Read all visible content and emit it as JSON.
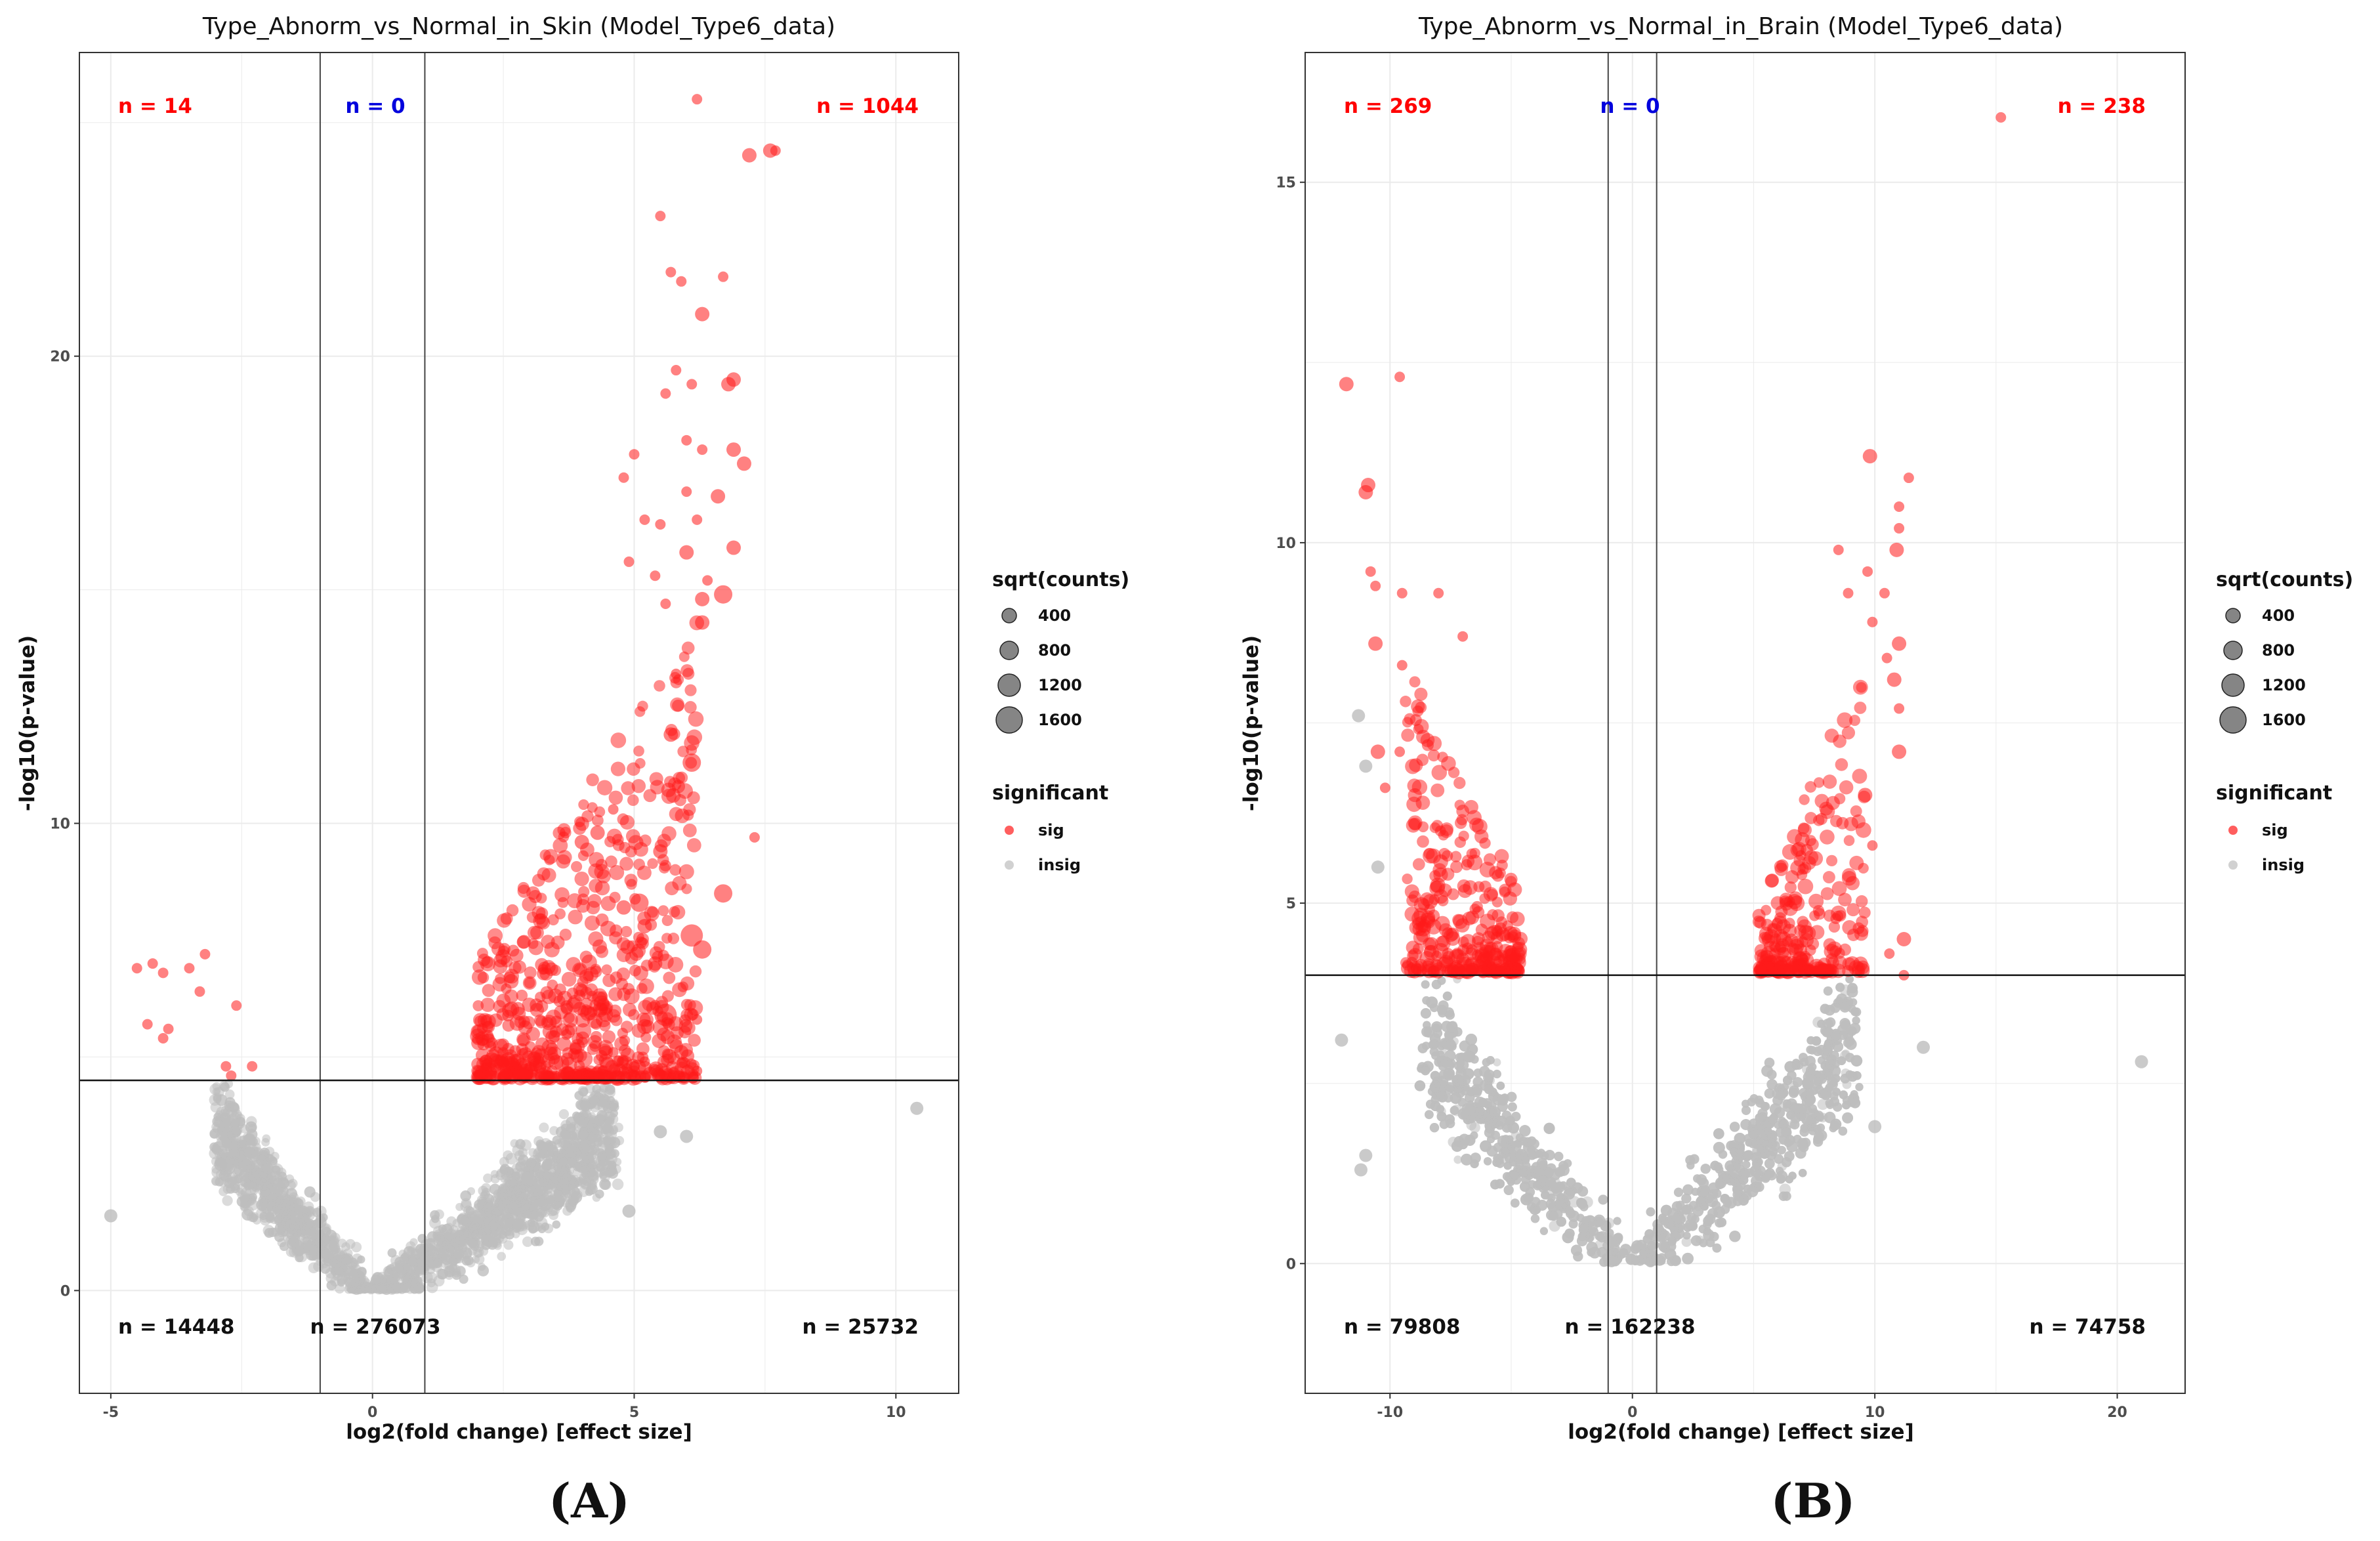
{
  "colors": {
    "sig": "#ff1a1a",
    "insig": "#bdbdbd",
    "red_label": "#ff0000",
    "blue_label": "#0000dd",
    "black_label": "#111111"
  },
  "panel_labels": [
    "(A)",
    "(B)"
  ],
  "chart_data": [
    {
      "type": "scatter",
      "title": "Type_Abnorm_vs_Normal_in_Skin (Model_Type6_data)",
      "xlabel": "log2(fold change) [effect size]",
      "ylabel": "-log10(p-value)",
      "xlim": [
        -5.6,
        11.2
      ],
      "ylim": [
        -2.2,
        26.5
      ],
      "xticks": [
        -5,
        0,
        5,
        10
      ],
      "xtick_labels": [
        "-5",
        "0",
        "5",
        "10"
      ],
      "yticks": [
        0,
        10,
        20
      ],
      "ytick_labels": [
        "0",
        "10",
        "20"
      ],
      "vlines": [
        -1,
        1
      ],
      "hline": 4.5,
      "counts": {
        "top_left": "n = 14",
        "top_center": "n = 0",
        "top_right": "n = 1044",
        "bottom_left": "n = 14448",
        "bottom_center": "n = 276073",
        "bottom_right": "n = 25732"
      },
      "legend": {
        "size_title": "sqrt(counts)",
        "size_values": [
          "400",
          "800",
          "1200",
          "1600"
        ],
        "color_title": "significant",
        "color_values": [
          "sig",
          "insig"
        ]
      },
      "sig_points": [
        [
          6.2,
          25.5,
          1
        ],
        [
          7.2,
          24.3,
          2
        ],
        [
          7.6,
          24.4,
          2
        ],
        [
          7.7,
          24.4,
          1
        ],
        [
          5.5,
          23.0,
          1
        ],
        [
          5.7,
          21.8,
          1
        ],
        [
          5.9,
          21.6,
          1
        ],
        [
          6.7,
          21.7,
          1
        ],
        [
          6.3,
          20.9,
          2
        ],
        [
          5.8,
          19.7,
          1
        ],
        [
          6.1,
          19.4,
          1
        ],
        [
          6.8,
          19.4,
          2
        ],
        [
          6.9,
          19.5,
          2
        ],
        [
          5.6,
          19.2,
          1
        ],
        [
          6.0,
          18.2,
          1
        ],
        [
          6.3,
          18.0,
          1
        ],
        [
          5.0,
          17.9,
          1
        ],
        [
          6.9,
          18.0,
          2
        ],
        [
          7.1,
          17.7,
          2
        ],
        [
          4.8,
          17.4,
          1
        ],
        [
          6.0,
          17.1,
          1
        ],
        [
          6.6,
          17.0,
          2
        ],
        [
          5.2,
          16.5,
          1
        ],
        [
          5.5,
          16.4,
          1
        ],
        [
          6.2,
          16.5,
          1
        ],
        [
          6.0,
          15.8,
          2
        ],
        [
          6.9,
          15.9,
          2
        ],
        [
          4.9,
          15.6,
          1
        ],
        [
          5.4,
          15.3,
          1
        ],
        [
          6.4,
          15.2,
          1
        ],
        [
          6.7,
          14.9,
          3
        ],
        [
          6.3,
          14.8,
          2
        ],
        [
          5.6,
          14.7,
          1
        ],
        [
          6.3,
          14.3,
          2
        ],
        [
          5.8,
          13.2,
          1
        ],
        [
          6.1,
          11.3,
          3
        ],
        [
          5.7,
          11.9,
          2
        ],
        [
          5.5,
          9.4,
          2
        ],
        [
          6.7,
          8.5,
          3
        ],
        [
          6.1,
          7.6,
          4
        ],
        [
          6.3,
          7.3,
          3
        ],
        [
          5.2,
          7.8,
          2
        ],
        [
          5.4,
          7.0,
          2
        ],
        [
          4.8,
          8.2,
          2
        ],
        [
          5.1,
          8.3,
          3
        ],
        [
          4.6,
          10.3,
          1
        ],
        [
          4.3,
          9.8,
          2
        ],
        [
          4.0,
          9.6,
          2
        ],
        [
          7.3,
          9.7,
          1
        ],
        [
          5.6,
          5.9,
          4
        ],
        [
          6.2,
          5.8,
          1
        ],
        [
          5.9,
          5.1,
          2
        ],
        [
          6.2,
          4.7,
          1
        ],
        [
          5.0,
          4.8,
          1
        ],
        [
          4.8,
          4.7,
          1
        ],
        [
          4.4,
          4.7,
          1
        ],
        [
          4.6,
          5.1,
          1
        ],
        [
          5.2,
          4.9,
          1
        ],
        [
          -4.5,
          6.9,
          1
        ],
        [
          -4.2,
          7.0,
          1
        ],
        [
          -4.0,
          6.8,
          1
        ],
        [
          -3.5,
          6.9,
          1
        ],
        [
          -3.2,
          7.2,
          1
        ],
        [
          -3.3,
          6.4,
          1
        ],
        [
          -4.3,
          5.7,
          1
        ],
        [
          -3.9,
          5.6,
          1
        ],
        [
          -4.0,
          5.4,
          1
        ],
        [
          -2.6,
          6.1,
          1
        ],
        [
          -2.8,
          4.8,
          1
        ],
        [
          -2.7,
          4.6,
          1
        ],
        [
          -2.3,
          4.8,
          1
        ]
      ],
      "sig_cloud": {
        "x_range": [
          2.0,
          6.2
        ],
        "y_floor": 4.5,
        "y_ceiling": 14.5,
        "n_points": 700
      },
      "insig_cloud": {
        "vertex": [
          0,
          0
        ],
        "x_left": -3.0,
        "x_right": 4.6,
        "y_max": 4.5,
        "n_points": 2600
      },
      "insig_outliers": [
        [
          10.4,
          3.9
        ],
        [
          -5.0,
          1.6
        ],
        [
          4.9,
          1.7
        ],
        [
          5.5,
          3.4
        ],
        [
          6.0,
          3.3
        ],
        [
          -2.9,
          2.7
        ]
      ]
    },
    {
      "type": "scatter",
      "title": "Type_Abnorm_vs_Normal_in_Brain (Model_Type6_data)",
      "xlabel": "log2(fold change) [effect size]",
      "ylabel": "-log10(p-value)",
      "xlim": [
        -13.5,
        22.8
      ],
      "ylim": [
        -1.8,
        16.8
      ],
      "xticks": [
        -10,
        0,
        10,
        20
      ],
      "xtick_labels": [
        "-10",
        "0",
        "10",
        "20"
      ],
      "yticks": [
        0,
        5,
        10,
        15
      ],
      "ytick_labels": [
        "0",
        "5",
        "10",
        "15"
      ],
      "vlines": [
        -1,
        1
      ],
      "hline": 4.0,
      "counts": {
        "top_left": "n = 269",
        "top_center": "n = 0",
        "top_right": "n = 238",
        "bottom_left": "n = 79808",
        "bottom_center": "n = 162238",
        "bottom_right": "n = 74758"
      },
      "legend": {
        "size_title": "sqrt(counts)",
        "size_values": [
          "400",
          "800",
          "1200",
          "1600"
        ],
        "color_title": "significant",
        "color_values": [
          "sig",
          "insig"
        ]
      },
      "sig_points": [
        [
          15.2,
          15.9,
          1
        ],
        [
          -11.8,
          12.2,
          2
        ],
        [
          -9.6,
          12.3,
          1
        ],
        [
          -11.0,
          10.7,
          2
        ],
        [
          -10.9,
          10.8,
          2
        ],
        [
          -10.8,
          9.6,
          1
        ],
        [
          -10.6,
          9.4,
          1
        ],
        [
          -9.5,
          9.3,
          1
        ],
        [
          -8.0,
          9.3,
          1
        ],
        [
          -10.6,
          8.6,
          2
        ],
        [
          -9.5,
          8.3,
          1
        ],
        [
          -10.5,
          7.1,
          2
        ],
        [
          -10.2,
          6.6,
          1
        ],
        [
          -9.6,
          7.1,
          1
        ],
        [
          -7.0,
          8.7,
          1
        ],
        [
          9.8,
          11.2,
          2
        ],
        [
          11.4,
          10.9,
          1
        ],
        [
          11.0,
          10.5,
          1
        ],
        [
          10.9,
          9.9,
          2
        ],
        [
          11.0,
          10.2,
          1
        ],
        [
          8.5,
          9.9,
          1
        ],
        [
          9.7,
          9.6,
          1
        ],
        [
          8.9,
          9.3,
          1
        ],
        [
          10.4,
          9.3,
          1
        ],
        [
          9.9,
          8.9,
          1
        ],
        [
          11.0,
          8.6,
          2
        ],
        [
          10.8,
          8.1,
          2
        ],
        [
          10.5,
          8.4,
          1
        ],
        [
          11.0,
          7.7,
          1
        ],
        [
          11.0,
          7.1,
          2
        ],
        [
          11.2,
          4.5,
          2
        ],
        [
          10.6,
          4.3,
          1
        ],
        [
          11.2,
          4.0,
          1
        ],
        [
          9.9,
          5.8,
          1
        ],
        [
          9.6,
          6.5,
          2
        ]
      ],
      "sig_cloud_left": {
        "x_range": [
          -9.4,
          -4.6
        ],
        "y_floor": 4.0,
        "y_ceiling": 8.4,
        "n_points": 330
      },
      "sig_cloud_right": {
        "x_range": [
          5.2,
          9.6
        ],
        "y_floor": 4.0,
        "y_ceiling": 8.4,
        "n_points": 260
      },
      "insig_cloud": {
        "vertex": [
          0,
          0
        ],
        "x_left": -8.6,
        "x_right": 9.2,
        "y_max": 4.0,
        "n_points": 2900
      },
      "insig_outliers": [
        [
          21.0,
          2.8
        ],
        [
          -12.0,
          3.1
        ],
        [
          -11.0,
          1.5
        ],
        [
          12.0,
          3.0
        ],
        [
          -11.2,
          1.3
        ],
        [
          10.0,
          1.9
        ],
        [
          -10.5,
          5.5
        ],
        [
          -11.3,
          7.6
        ],
        [
          -11.0,
          6.9
        ]
      ]
    }
  ]
}
